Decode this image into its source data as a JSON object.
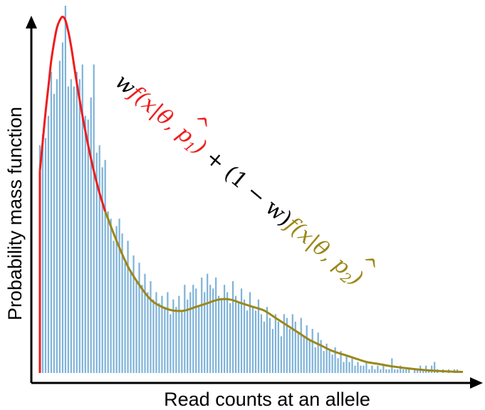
{
  "chart_data": {
    "type": "bar",
    "xlabel": "Read counts at an allele",
    "ylabel": "Probability mass function",
    "bar_color": "#7fb3d8",
    "ylim": [
      0,
      1
    ],
    "x": [
      1,
      2,
      3,
      4,
      5,
      6,
      7,
      8,
      9,
      10,
      11,
      12,
      13,
      14,
      15,
      16,
      17,
      18,
      19,
      20,
      21,
      22,
      23,
      24,
      25,
      26,
      27,
      28,
      29,
      30,
      31,
      32,
      33,
      34,
      35,
      36,
      37,
      38,
      39,
      40,
      41,
      42,
      43,
      44,
      45,
      46,
      47,
      48,
      49,
      50,
      51,
      52,
      53,
      54,
      55,
      56,
      57,
      58,
      59,
      60,
      61,
      62,
      63,
      64,
      65,
      66,
      67,
      68,
      69,
      70,
      71,
      72,
      73,
      74,
      75,
      76,
      77,
      78,
      79,
      80,
      81,
      82,
      83,
      84,
      85,
      86,
      87,
      88,
      89,
      90,
      91,
      92,
      93,
      94,
      95,
      96,
      97,
      98,
      99,
      100,
      101,
      102,
      103,
      104,
      105,
      106,
      107,
      108,
      109,
      110,
      111,
      112,
      113,
      114,
      115,
      116,
      117,
      118,
      119,
      120,
      121,
      122,
      123,
      124,
      125,
      126,
      127,
      128,
      129,
      130,
      131,
      132,
      133,
      134,
      135,
      136,
      137,
      138,
      139,
      140,
      141,
      142,
      143,
      144,
      145,
      146,
      147,
      148,
      149,
      150
    ],
    "values": [
      0.62,
      0.65,
      0.64,
      0.7,
      0.82,
      0.76,
      0.8,
      0.85,
      0.9,
      1.0,
      0.78,
      0.8,
      0.78,
      0.82,
      0.8,
      0.84,
      0.7,
      0.69,
      0.75,
      0.84,
      0.6,
      0.62,
      0.56,
      0.58,
      0.44,
      0.42,
      0.36,
      0.4,
      0.42,
      0.38,
      0.3,
      0.36,
      0.28,
      0.32,
      0.25,
      0.3,
      0.24,
      0.27,
      0.22,
      0.25,
      0.2,
      0.22,
      0.19,
      0.21,
      0.18,
      0.22,
      0.16,
      0.2,
      0.18,
      0.21,
      0.17,
      0.24,
      0.2,
      0.22,
      0.24,
      0.23,
      0.18,
      0.26,
      0.22,
      0.27,
      0.24,
      0.23,
      0.26,
      0.21,
      0.2,
      0.24,
      0.22,
      0.19,
      0.25,
      0.21,
      0.19,
      0.23,
      0.2,
      0.17,
      0.22,
      0.18,
      0.17,
      0.2,
      0.16,
      0.14,
      0.18,
      0.15,
      0.12,
      0.16,
      0.14,
      0.1,
      0.16,
      0.15,
      0.12,
      0.16,
      0.14,
      0.11,
      0.15,
      0.1,
      0.13,
      0.09,
      0.12,
      0.07,
      0.11,
      0.09,
      0.06,
      0.08,
      0.06,
      0.05,
      0.07,
      0.04,
      0.06,
      0.03,
      0.05,
      0.03,
      0.04,
      0.02,
      0.03,
      0.02,
      0.02,
      0.03,
      0.01,
      0.02,
      0.01,
      0.02,
      0.01,
      0.02,
      0.01,
      0.01,
      0.04,
      0.01,
      0.01,
      0.02,
      0.01,
      0.01,
      0.01,
      0.0,
      0.01,
      0.01,
      0.02,
      0.01,
      0.02,
      0.01,
      0.02,
      0.03,
      0.01,
      0.0,
      0.01,
      0.0,
      0.01,
      0.0,
      0.01,
      0.01,
      0.0,
      0.0
    ],
    "series": [
      {
        "type": "line",
        "color": "#ee1c1c",
        "x": [
          1,
          2,
          3,
          4,
          5,
          6,
          7,
          8,
          9,
          10,
          11,
          12,
          13,
          14,
          16,
          18,
          20,
          22,
          24
        ],
        "values": [
          0.55,
          0.63,
          0.71,
          0.78,
          0.85,
          0.9,
          0.94,
          0.96,
          0.97,
          0.96,
          0.93,
          0.89,
          0.84,
          0.79,
          0.7,
          0.62,
          0.55,
          0.49,
          0.44
        ]
      },
      {
        "type": "line",
        "color": "#9c8718",
        "x": [
          24,
          28,
          32,
          36,
          40,
          44,
          48,
          52,
          56,
          60,
          64,
          68,
          72,
          76,
          80,
          84,
          88,
          92,
          96,
          100,
          104,
          108,
          112,
          116,
          120,
          125,
          130,
          135,
          140,
          145,
          150
        ],
        "values": [
          0.44,
          0.36,
          0.29,
          0.24,
          0.2,
          0.18,
          0.17,
          0.17,
          0.18,
          0.19,
          0.2,
          0.2,
          0.19,
          0.18,
          0.17,
          0.15,
          0.13,
          0.11,
          0.09,
          0.075,
          0.06,
          0.05,
          0.04,
          0.03,
          0.025,
          0.018,
          0.013,
          0.009,
          0.006,
          0.004,
          0.003
        ]
      }
    ],
    "annotations": {
      "red_part": {
        "w": "w",
        "f": "f",
        "args": "(x|",
        "theta": "θ",
        "hat": "^",
        "comma_p": ", p",
        "sub": "1",
        "close": ")"
      },
      "black_part": "+ (1 − w)",
      "olive_part": {
        "f": "f",
        "args": "(x|",
        "theta": "θ",
        "hat": "^",
        "comma_p": ", p",
        "sub": "2",
        "close": ")"
      }
    }
  }
}
